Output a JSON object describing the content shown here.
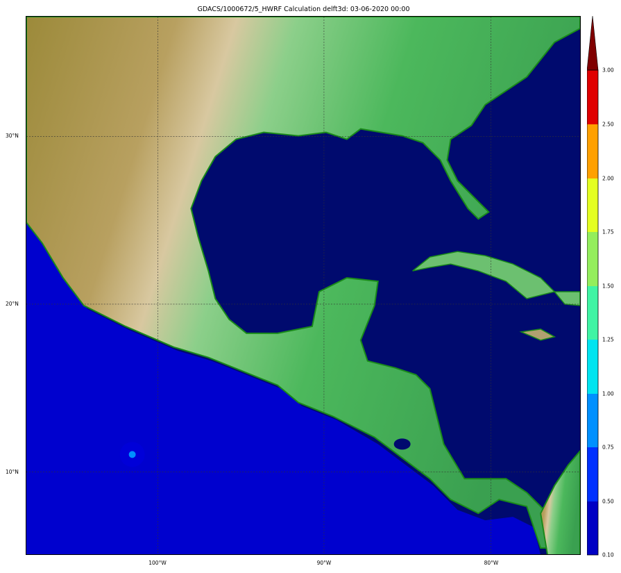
{
  "title": "GDACS/1000672/5_HWRF Calculation delft3d: 03-06-2020 00:00",
  "map": {
    "lat_labels": [
      "30°N",
      "20°N",
      "10°N"
    ],
    "lon_labels": [
      "100°W",
      "90°W",
      "80°W"
    ],
    "ocean_color": "#000a6e",
    "background": "shaded relief topography"
  },
  "colorbar": {
    "labels": [
      "3.00",
      "2.50",
      "2.00",
      "1.75",
      "1.50",
      "1.25",
      "1.00",
      "0.75",
      "0.50",
      "0.10"
    ],
    "colors": [
      "#0000c4",
      "#0030ff",
      "#0090ff",
      "#00e4f0",
      "#40f4a4",
      "#94ee5c",
      "#e4ff20",
      "#ffa000",
      "#e00000"
    ],
    "extend_color": "#800000"
  }
}
